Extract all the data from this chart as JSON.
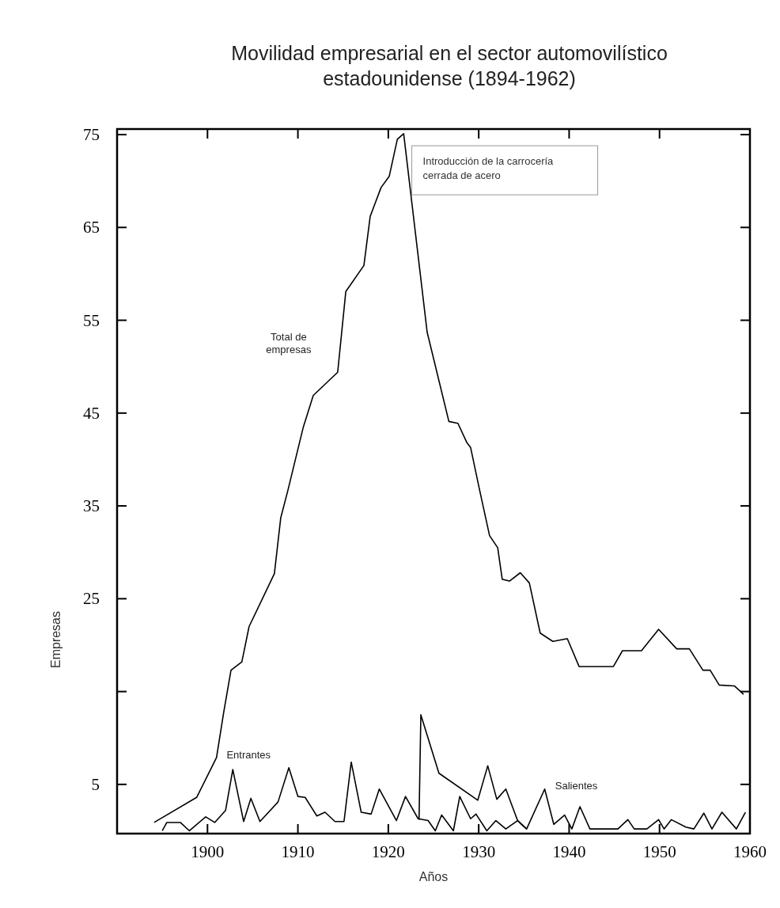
{
  "chart_data": {
    "type": "line",
    "title": "Movilidad empresarial en el sector automovilístico estadounidense (1894-1962)",
    "xlabel": "Años",
    "ylabel": "Empresas",
    "annotations": [
      "Introducción de la carrocería cerrada de acero"
    ],
    "xlim": [
      1890,
      1960
    ],
    "xticks": [
      1900,
      1910,
      1920,
      1930,
      1940,
      1950,
      1960
    ],
    "ylim": [
      -0.3,
      75.6
    ],
    "yticks": [
      5,
      {
        "value": 15,
        "label": null
      },
      25,
      35,
      45,
      55,
      65,
      75
    ],
    "grid": false,
    "marker": "none",
    "line_style": "solid",
    "series": [
      {
        "name": "Total de empresas",
        "color": "#000000",
        "x": [
          1894.1,
          1898.8,
          1900.6,
          1901,
          1901.8,
          1902.6,
          1903.8,
          1904.6,
          1907.4,
          1908.1,
          1908.9,
          1910.6,
          1911.7,
          1914.4,
          1915.3,
          1917.3,
          1918,
          1919.2,
          1920.1,
          1921,
          1921.7,
          1924.3,
          1926.7,
          1927.7,
          1928.7,
          1929.1,
          1930.1,
          1931.2,
          1932.1,
          1932.6,
          1933.4,
          1934.6,
          1935.6,
          1936.8,
          1938.2,
          1939.8,
          1941.1,
          1944.9,
          1945.9,
          1948,
          1949.9,
          1951.9,
          1953.3,
          1954.8,
          1955.6,
          1956.6,
          1958.3,
          1959.3
        ],
        "values": [
          0.9,
          3.6,
          7.1,
          7.9,
          12.8,
          17.3,
          18.2,
          22,
          27.7,
          33.7,
          36.7,
          43.5,
          46.9,
          49.4,
          58.1,
          60.9,
          66.2,
          69.3,
          70.5,
          74.5,
          75.1,
          53.7,
          44.1,
          43.9,
          41.8,
          41.3,
          36.7,
          31.8,
          30.5,
          27.1,
          26.9,
          27.8,
          26.7,
          21.3,
          20.4,
          20.7,
          17.7,
          17.7,
          19.4,
          19.4,
          21.7,
          19.6,
          19.6,
          17.3,
          17.3,
          15.7,
          15.6,
          14.7
        ]
      },
      {
        "name": "Entrantes",
        "color": "#000000",
        "x": [
          1895,
          1895.5,
          1897,
          1898,
          1899.8,
          1900.8,
          1902,
          1902.8,
          1904,
          1904.8,
          1905.8,
          1907.8,
          1909,
          1910,
          1910.8,
          1912.1,
          1913,
          1914.1,
          1915.1,
          1915.9,
          1917,
          1918.1,
          1919,
          1920.9,
          1921.9,
          1923.3,
          1924.4,
          1925.2,
          1925.9,
          1927.2,
          1927.9,
          1929.1,
          1929.7,
          1930.9,
          1931.9,
          1933,
          1934.3,
          1935.3
        ],
        "values": [
          0,
          0.9,
          0.9,
          0,
          1.5,
          0.9,
          2.2,
          6.6,
          1,
          3.5,
          1,
          3.1,
          6.8,
          3.7,
          3.6,
          1.6,
          2,
          1,
          1,
          7.4,
          2,
          1.8,
          4.5,
          1.1,
          3.7,
          1.3,
          1.1,
          0,
          1.7,
          0,
          3.7,
          1.3,
          1.8,
          0,
          1.1,
          0.2,
          1.1,
          0.2
        ]
      },
      {
        "name": "Salientes",
        "color": "#000000",
        "x": [
          1923.4,
          1923.6,
          1925.6,
          1929.9,
          1931,
          1932,
          1933,
          1934.3,
          1935.3,
          1937.3,
          1938.3,
          1939.5,
          1940.3,
          1941.2,
          1942.3,
          1945.4,
          1946.5,
          1947.2,
          1948.6,
          1949.9,
          1950.5,
          1951.3,
          1952.9,
          1953.8,
          1954.9,
          1955.8,
          1956.9,
          1958.5,
          1959.5
        ],
        "values": [
          1.2,
          12.5,
          6.2,
          3.3,
          7,
          3.4,
          4.5,
          1.1,
          0.2,
          4.5,
          0.7,
          1.7,
          0.2,
          2.6,
          0.2,
          0.2,
          1.2,
          0.2,
          0.2,
          1.2,
          0.2,
          1.2,
          0.4,
          0.2,
          1.9,
          0.2,
          2,
          0.2,
          2
        ]
      }
    ]
  }
}
